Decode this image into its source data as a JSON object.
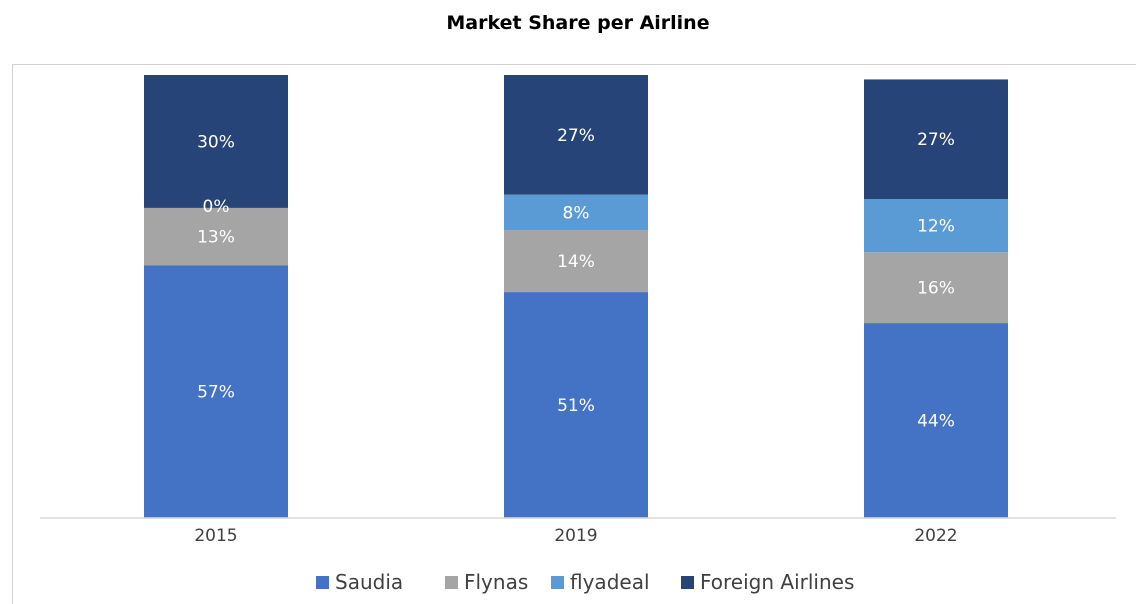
{
  "chart_data": {
    "type": "bar",
    "stacked": true,
    "title": "Market Share per Airline",
    "xlabel": "",
    "ylabel": "",
    "categories": [
      "2015",
      "2019",
      "2022"
    ],
    "series": [
      {
        "name": "Saudia",
        "color": "#4472C4",
        "values": [
          57,
          51,
          44
        ],
        "labels": [
          "57%",
          "51%",
          "44%"
        ]
      },
      {
        "name": "Flynas",
        "color": "#A5A5A5",
        "values": [
          13,
          14,
          16
        ],
        "labels": [
          "13%",
          "14%",
          "16%"
        ]
      },
      {
        "name": "flyadeal",
        "color": "#5B9BD5",
        "values": [
          0,
          8,
          12
        ],
        "labels": [
          "0%",
          "8%",
          "12%"
        ]
      },
      {
        "name": "Foreign Airlines",
        "color": "#264478",
        "values": [
          30,
          27,
          27
        ],
        "labels": [
          "30%",
          "27%",
          "27%"
        ]
      }
    ],
    "ylim": [
      0,
      100
    ],
    "legend": "bottom",
    "grid": false
  }
}
